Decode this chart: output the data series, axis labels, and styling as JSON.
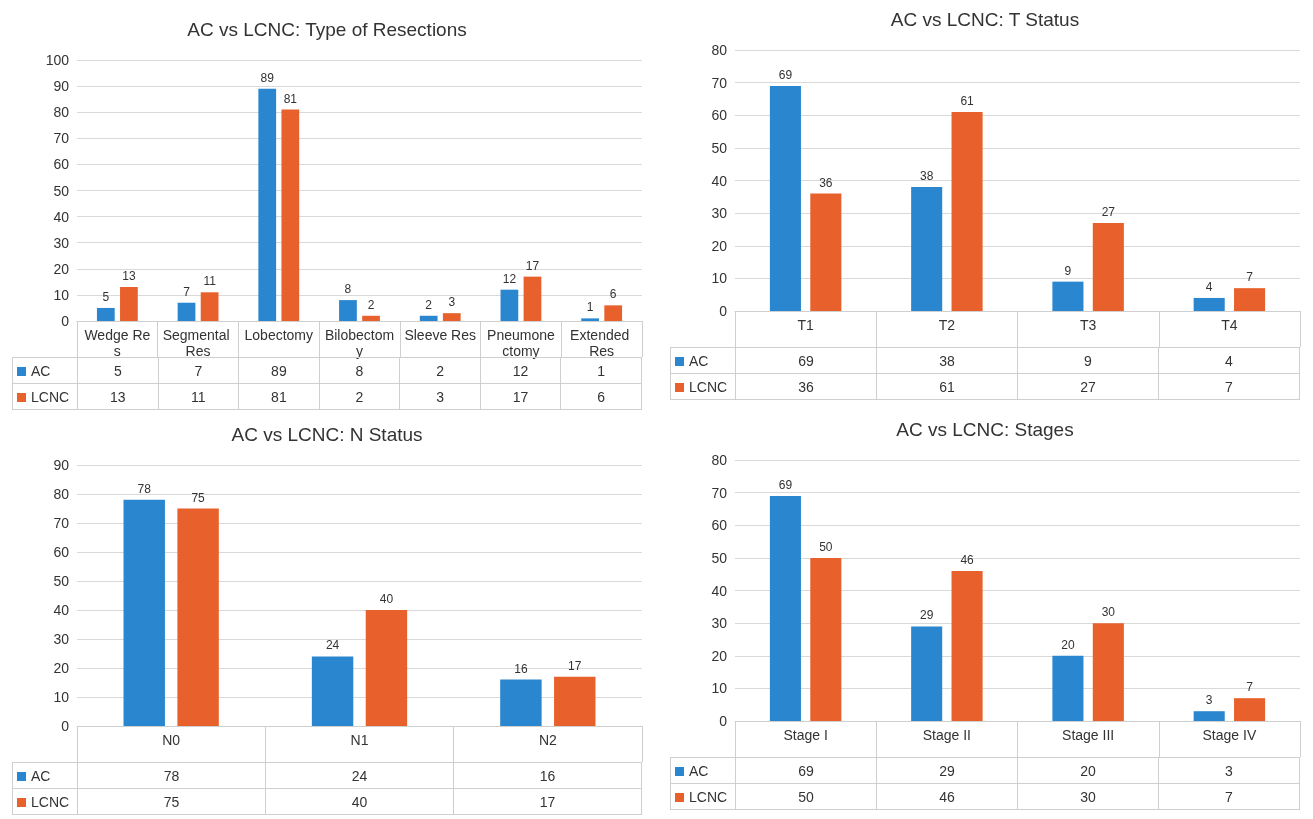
{
  "chart_data": [
    {
      "type": "bar",
      "title": "AC vs LCNC: Type of Resections",
      "categories": [
        "Wedge Res",
        "Segmental Res",
        "Lobectomy",
        "Bilobectomy",
        "Sleeve Res",
        "Pneumonectomy",
        "Extended Res"
      ],
      "series": [
        {
          "name": "AC",
          "color": "#2a86cf",
          "values": [
            5,
            7,
            89,
            8,
            2,
            12,
            1
          ],
          "value_labels": [
            "5",
            "7",
            "89",
            "8",
            "2",
            "12",
            "1"
          ]
        },
        {
          "name": "LCNC",
          "color": "#e8612c",
          "values": [
            13,
            11,
            81,
            2,
            3,
            17,
            6
          ],
          "value_labels": [
            "13",
            "11",
            "81",
            "2",
            "3",
            "17",
            "6"
          ]
        }
      ],
      "ylim": [
        0,
        100
      ],
      "yticks": [
        0,
        10,
        20,
        30,
        40,
        50,
        60,
        70,
        80,
        90,
        100
      ],
      "grid": "y",
      "legend": "bottom",
      "data_labels": true
    },
    {
      "type": "bar",
      "title": "AC vs LCNC: T Status",
      "categories": [
        "T1",
        "T2",
        "T3",
        "T4"
      ],
      "series": [
        {
          "name": "AC",
          "color": "#2a86cf",
          "values": [
            69,
            38,
            9,
            4
          ],
          "value_labels": [
            "69",
            "38",
            "9",
            "4"
          ]
        },
        {
          "name": "LCNC",
          "color": "#e8612c",
          "values": [
            36,
            61,
            27,
            7
          ],
          "value_labels": [
            "36",
            "61",
            "27",
            "7"
          ]
        }
      ],
      "ylim": [
        0,
        80
      ],
      "yticks": [
        0,
        10,
        20,
        30,
        40,
        50,
        60,
        70,
        80
      ],
      "grid": "y",
      "legend": "bottom",
      "data_labels": true
    },
    {
      "type": "bar",
      "title": "AC vs LCNC: N Status",
      "categories": [
        "N0",
        "N1",
        "N2"
      ],
      "series": [
        {
          "name": "AC",
          "color": "#2a86cf",
          "values": [
            78,
            24,
            16
          ],
          "value_labels": [
            "78",
            "24",
            "16"
          ]
        },
        {
          "name": "LCNC",
          "color": "#e8612c",
          "values": [
            75,
            40,
            17
          ],
          "value_labels": [
            "75",
            "40",
            "17"
          ]
        }
      ],
      "ylim": [
        0,
        90
      ],
      "yticks": [
        0,
        10,
        20,
        30,
        40,
        50,
        60,
        70,
        80,
        90
      ],
      "grid": "y",
      "legend": "bottom",
      "data_labels": true
    },
    {
      "type": "bar",
      "title": "AC vs LCNC: Stages",
      "categories": [
        "Stage I",
        "Stage II",
        "Stage III",
        "Stage IV"
      ],
      "series": [
        {
          "name": "AC",
          "color": "#2a86cf",
          "values": [
            69,
            29,
            20,
            3
          ],
          "value_labels": [
            "69",
            "29",
            "20",
            "3"
          ]
        },
        {
          "name": "LCNC",
          "color": "#e8612c",
          "values": [
            50,
            46,
            30,
            7
          ],
          "value_labels": [
            "50",
            "46",
            "30",
            "7"
          ]
        }
      ],
      "ylim": [
        0,
        80
      ],
      "yticks": [
        0,
        10,
        20,
        30,
        40,
        50,
        60,
        70,
        80
      ],
      "grid": "y",
      "legend": "bottom",
      "data_labels": true
    }
  ]
}
